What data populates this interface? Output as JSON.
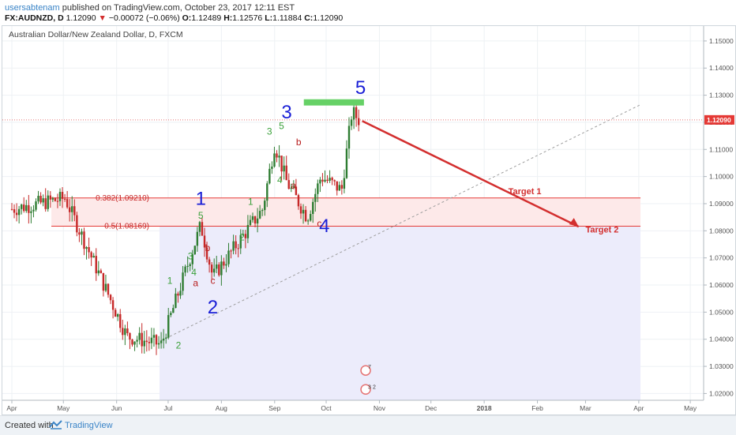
{
  "header": {
    "author": "usersabtenam",
    "published_text": " published on TradingView.com, October 23, 2017 12:11 EST",
    "symbol": "FX:AUDNZD, D",
    "last": "1.12090",
    "change": "−0.00072 (−0.06%)",
    "o_label": "O:",
    "o": "1.12489",
    "h_label": "H:",
    "h": "1.12576",
    "l_label": "L:",
    "l": "1.11884",
    "c_label": "C:",
    "c": "1.12090",
    "down_arrow": "▼"
  },
  "footer": {
    "created_with": "Created with",
    "brand": "TradingView"
  },
  "colors": {
    "up": "#2e7d32",
    "down": "#c62828",
    "fib_zone": "#fde9e9",
    "ext_zone": "#ececfb",
    "fib_line": "#e53935",
    "price_tag": "#e53935",
    "target": "#d32f2f",
    "blue": "#1a1fd6",
    "green": "#3aa03a",
    "red_label": "#b71c1c",
    "green_box": "#66d166"
  },
  "chart_data": {
    "type": "candlestick",
    "title": "Australian Dollar/New Zealand Dollar, D, FXCM",
    "y_range": [
      1.0175,
      1.1555
    ],
    "y_ticks": [
      "1.15000",
      "1.14000",
      "1.13000",
      "1.12000",
      "1.11000",
      "1.10000",
      "1.09000",
      "1.08000",
      "1.07000",
      "1.06000",
      "1.05000",
      "1.04000",
      "1.03000",
      "1.02000"
    ],
    "x_ticks": [
      "Apr",
      "May",
      "Jun",
      "Jul",
      "Aug",
      "Sep",
      "Oct",
      "Nov",
      "Dec",
      "2018",
      "Feb",
      "Mar",
      "Apr",
      "May"
    ],
    "last_price_tag": "1.12090",
    "key_closes": [
      {
        "date": "2017-04-01",
        "close": 1.088
      },
      {
        "date": "2017-05-02",
        "close": 1.092
      },
      {
        "date": "2017-06-07",
        "close": 1.041
      },
      {
        "date": "2017-06-27",
        "close": 1.038
      },
      {
        "date": "2017-07-10",
        "close": 1.063
      },
      {
        "date": "2017-07-20",
        "close": 1.082
      },
      {
        "date": "2017-07-27",
        "close": 1.063
      },
      {
        "date": "2017-08-25",
        "close": 1.088
      },
      {
        "date": "2017-09-01",
        "close": 1.112
      },
      {
        "date": "2017-09-08",
        "close": 1.098
      },
      {
        "date": "2017-09-20",
        "close": 1.085
      },
      {
        "date": "2017-09-28",
        "close": 1.1
      },
      {
        "date": "2017-10-10",
        "close": 1.095
      },
      {
        "date": "2017-10-16",
        "close": 1.124
      },
      {
        "date": "2017-10-20",
        "close": 1.1209
      }
    ],
    "fib_levels": [
      {
        "label": "0.382(1.09210)",
        "value": 1.0921
      },
      {
        "label": "0.5(1.08169)",
        "value": 1.08169
      }
    ],
    "targets": [
      {
        "label": "Target 1",
        "value": 1.0921
      },
      {
        "label": "Target 2",
        "value": 1.08169
      }
    ],
    "wave_labels": {
      "primary": [
        "1",
        "2",
        "3",
        "4",
        "5"
      ],
      "minor": [
        "1",
        "2",
        "3",
        "4",
        "5"
      ],
      "abc": [
        "a",
        "b",
        "c"
      ]
    },
    "event_badges": [
      "7",
      "3",
      "2"
    ]
  }
}
